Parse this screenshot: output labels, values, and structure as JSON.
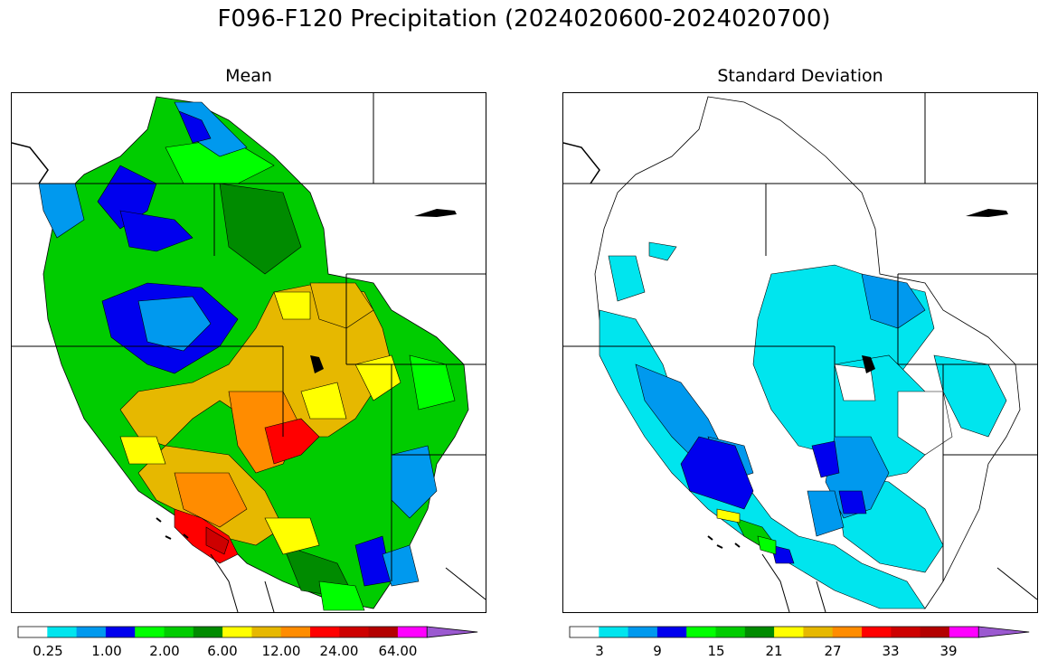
{
  "title": "F096-F120 Precipitation (2024020600-2024020700)",
  "panels": [
    {
      "title": "Mean",
      "colors": [
        "#ffffff",
        "#00e5ee",
        "#0099ee",
        "#0000ee",
        "#00ff00",
        "#00cc00",
        "#008b00",
        "#ffff00",
        "#e6b800",
        "#ff8c00",
        "#ff0000",
        "#cd0000",
        "#b30000",
        "#ff00ff",
        "#9b59d0"
      ],
      "tick_labels": [
        "0.25",
        "1.00",
        "2.00",
        "6.00",
        "12.00",
        "24.00",
        "64.00"
      ]
    },
    {
      "title": "Standard Deviation",
      "colors": [
        "#ffffff",
        "#00e5ee",
        "#0099ee",
        "#0000ee",
        "#00ff00",
        "#00cc00",
        "#008b00",
        "#ffff00",
        "#e6b800",
        "#ff8c00",
        "#ff0000",
        "#cd0000",
        "#b30000",
        "#ff00ff",
        "#9b59d0"
      ],
      "tick_labels": [
        "3",
        "9",
        "15",
        "21",
        "27",
        "33",
        "39"
      ]
    }
  ]
}
